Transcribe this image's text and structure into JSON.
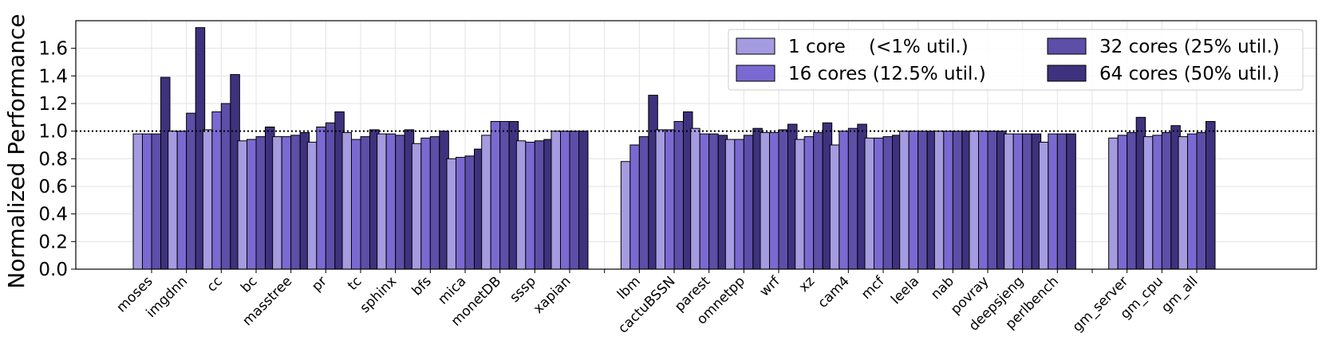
{
  "chart_data": {
    "type": "bar",
    "ylabel": "Normalized Performance",
    "xlabel": "",
    "ylim": [
      0,
      1.8
    ],
    "yticks": [
      0.0,
      0.2,
      0.4,
      0.6,
      0.8,
      1.0,
      1.2,
      1.4,
      1.6
    ],
    "ytick_labels": [
      "0.0",
      "0.2",
      "0.4",
      "0.6",
      "0.8",
      "1.0",
      "1.2",
      "1.4",
      "1.6"
    ],
    "grid": true,
    "reference_line": 1.0,
    "legend_position": "top-right",
    "categories": [
      "moses",
      "imgdnn",
      "cc",
      "bc",
      "masstree",
      "pr",
      "tc",
      "sphinx",
      "bfs",
      "mica",
      "monetDB",
      "sssp",
      "xapian",
      "",
      "lbm",
      "cactuBSSN",
      "parest",
      "omnetpp",
      "wrf",
      "xz",
      "cam4",
      "mcf",
      "leela",
      "nab",
      "povray",
      "deepsjeng",
      "perlbench",
      "",
      "gm_server",
      "gm_cpu",
      "gm_all"
    ],
    "series": [
      {
        "name": "1 core    (<1% util.)",
        "color": "#a59be0",
        "values": [
          0.98,
          1.0,
          1.01,
          0.93,
          0.96,
          0.92,
          0.99,
          0.98,
          0.91,
          0.8,
          0.97,
          0.93,
          1.0,
          null,
          0.78,
          1.01,
          1.02,
          0.94,
          0.99,
          0.94,
          0.9,
          0.95,
          1.0,
          1.0,
          1.0,
          0.98,
          0.92,
          null,
          0.95,
          0.96,
          0.96
        ]
      },
      {
        "name": "16 cores (12.5% util.)",
        "color": "#7b69d2",
        "values": [
          0.98,
          1.0,
          1.14,
          0.94,
          0.96,
          1.03,
          0.94,
          0.98,
          0.95,
          0.81,
          1.07,
          0.92,
          1.0,
          null,
          0.9,
          1.01,
          0.98,
          0.94,
          0.99,
          0.96,
          1.0,
          0.95,
          1.0,
          1.0,
          1.0,
          0.98,
          0.98,
          null,
          0.97,
          0.97,
          0.98
        ]
      },
      {
        "name": "32 cores (25% util.)",
        "color": "#5d4ea8",
        "values": [
          0.98,
          1.13,
          1.2,
          0.96,
          0.97,
          1.06,
          0.96,
          0.97,
          0.96,
          0.82,
          1.07,
          0.93,
          1.0,
          null,
          0.96,
          1.07,
          0.98,
          0.97,
          1.01,
          0.99,
          1.02,
          0.96,
          1.0,
          1.0,
          1.0,
          0.98,
          0.98,
          null,
          0.99,
          0.99,
          0.99
        ]
      },
      {
        "name": "64 cores (50% util.)",
        "color": "#3e327e",
        "values": [
          1.39,
          1.75,
          1.41,
          1.03,
          0.99,
          1.14,
          1.01,
          1.01,
          1.0,
          0.87,
          1.07,
          0.94,
          1.0,
          null,
          1.26,
          1.14,
          0.97,
          1.02,
          1.05,
          1.06,
          1.05,
          0.97,
          1.0,
          1.0,
          1.0,
          0.98,
          0.98,
          null,
          1.1,
          1.04,
          1.07
        ]
      }
    ]
  }
}
